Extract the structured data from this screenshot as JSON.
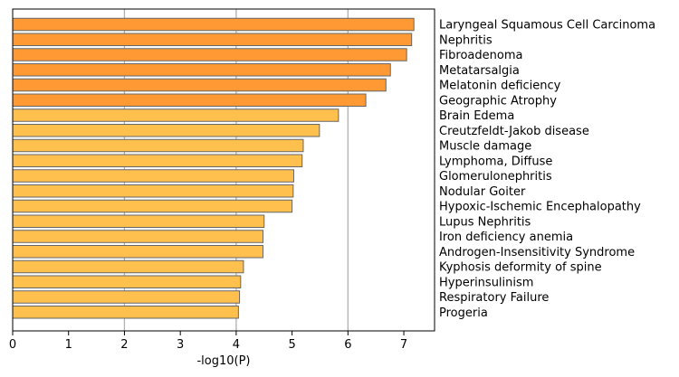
{
  "chart_data": {
    "type": "bar",
    "orientation": "horizontal",
    "title": "",
    "xlabel": "-log10(P)",
    "ylabel": "",
    "xlim": [
      0,
      7.55
    ],
    "xticks": [
      0,
      1,
      2,
      3,
      4,
      5,
      6,
      7
    ],
    "grid": "x-axis at 2, 4, 6",
    "gridlines": [
      2,
      4,
      6
    ],
    "category_label_position": "right",
    "colors": {
      "dark": "#FF9933",
      "light": "#FFC04D",
      "edge": "#666666",
      "grid": "#B0B0B0"
    },
    "categories": [
      "Laryngeal Squamous Cell Carcinoma",
      "Nephritis",
      "Fibroadenoma",
      "Metatarsalgia",
      "Melatonin deficiency",
      "Geographic Atrophy",
      "Brain Edema",
      "Creutzfeldt-Jakob disease",
      "Muscle damage",
      "Lymphoma, Diffuse",
      "Glomerulonephritis",
      "Nodular Goiter",
      "Hypoxic-Ischemic Encephalopathy",
      "Lupus Nephritis",
      "Iron deficiency anemia",
      "Androgen-Insensitivity Syndrome",
      "Kyphosis deformity of spine",
      "Hyperinsulinism",
      "Respiratory Failure",
      "Progeria"
    ],
    "values": [
      7.18,
      7.14,
      7.05,
      6.76,
      6.68,
      6.32,
      5.83,
      5.49,
      5.2,
      5.18,
      5.03,
      5.02,
      5.0,
      4.5,
      4.48,
      4.48,
      4.13,
      4.08,
      4.06,
      4.04
    ],
    "bar_color_group": [
      "dark",
      "dark",
      "dark",
      "dark",
      "dark",
      "dark",
      "light",
      "light",
      "light",
      "light",
      "light",
      "light",
      "light",
      "light",
      "light",
      "light",
      "light",
      "light",
      "light",
      "light"
    ]
  }
}
